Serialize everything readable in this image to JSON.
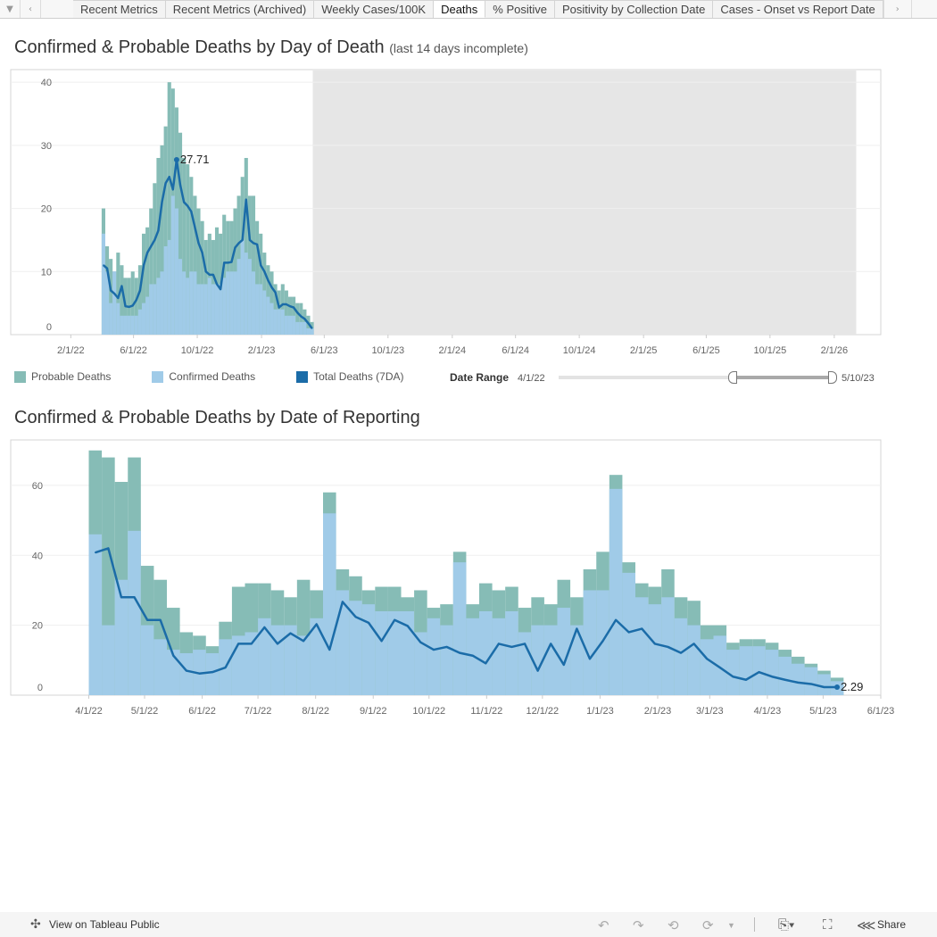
{
  "tabs": {
    "items": [
      "Recent Metrics",
      "Recent Metrics (Archived)",
      "Weekly Cases/100K",
      "Deaths",
      "% Positive",
      "Positivity by Collection Date",
      "Cases - Onset vs Report Date"
    ],
    "active": "Deaths",
    "menu_icon": "dropdown-triangle-icon",
    "prev_icon": "chevron-left-icon",
    "next_icon": "chevron-right-icon"
  },
  "colors": {
    "probable": "#86bcb6",
    "confirmed": "#a0cbe8",
    "total_7da": "#1b6ca8",
    "incomplete_band": "#e6e6e6"
  },
  "legend": {
    "probable": "Probable Deaths",
    "confirmed": "Confirmed Deaths",
    "total": "Total Deaths (7DA)"
  },
  "date_range": {
    "label": "Date Range",
    "start": "4/1/22",
    "end": "5/10/23"
  },
  "chart_data": [
    {
      "type": "bar",
      "title": "Confirmed & Probable Deaths by Day of Death",
      "subtitle": "(last 14 days incomplete)",
      "x_domain": [
        "2021-10-09",
        "2026-05-01"
      ],
      "incomplete_band": [
        "2023-05-10",
        "2026-03-15"
      ],
      "ylim": [
        0,
        42
      ],
      "y_ticks": [
        0,
        10,
        20,
        30,
        40
      ],
      "x_ticks": [
        [
          "2022-02-01",
          "2/1/22"
        ],
        [
          "2022-06-01",
          "6/1/22"
        ],
        [
          "2022-10-01",
          "10/1/22"
        ],
        [
          "2023-02-01",
          "2/1/23"
        ],
        [
          "2023-06-01",
          "6/1/23"
        ],
        [
          "2023-10-01",
          "10/1/23"
        ],
        [
          "2024-02-01",
          "2/1/24"
        ],
        [
          "2024-06-01",
          "6/1/24"
        ],
        [
          "2024-10-01",
          "10/1/24"
        ],
        [
          "2025-02-01",
          "2/1/25"
        ],
        [
          "2025-06-01",
          "6/1/25"
        ],
        [
          "2025-10-01",
          "10/1/25"
        ],
        [
          "2026-02-01",
          "2/1/26"
        ]
      ],
      "grid": true,
      "x": [
        "2022-04-01",
        "2022-04-08",
        "2022-04-15",
        "2022-04-22",
        "2022-04-29",
        "2022-05-06",
        "2022-05-13",
        "2022-05-20",
        "2022-05-27",
        "2022-06-03",
        "2022-06-10",
        "2022-06-17",
        "2022-06-24",
        "2022-07-01",
        "2022-07-08",
        "2022-07-15",
        "2022-07-22",
        "2022-07-29",
        "2022-08-05",
        "2022-08-12",
        "2022-08-19",
        "2022-08-26",
        "2022-09-02",
        "2022-09-09",
        "2022-09-16",
        "2022-09-23",
        "2022-09-30",
        "2022-10-07",
        "2022-10-14",
        "2022-10-21",
        "2022-10-28",
        "2022-11-04",
        "2022-11-11",
        "2022-11-18",
        "2022-11-25",
        "2022-12-02",
        "2022-12-09",
        "2022-12-16",
        "2022-12-23",
        "2022-12-30",
        "2023-01-06",
        "2023-01-13",
        "2023-01-20",
        "2023-01-27",
        "2023-02-03",
        "2023-02-10",
        "2023-02-17",
        "2023-02-24",
        "2023-03-03",
        "2023-03-10",
        "2023-03-17",
        "2023-03-24",
        "2023-03-31",
        "2023-04-07",
        "2023-04-14",
        "2023-04-21",
        "2023-04-28",
        "2023-05-05"
      ],
      "series": [
        {
          "name": "Probable Deaths",
          "values": [
            20,
            14,
            12,
            10,
            13,
            11,
            9,
            9,
            10,
            9,
            11,
            16,
            17,
            20,
            24,
            28,
            30,
            33,
            40,
            39,
            36,
            32,
            28,
            27,
            25,
            22,
            20,
            18,
            15,
            16,
            15,
            17,
            16,
            19,
            18,
            18,
            20,
            22,
            25,
            28,
            22,
            22,
            18,
            16,
            13,
            11,
            10,
            8,
            7,
            8,
            7,
            6,
            6,
            5,
            5,
            4,
            3,
            2
          ]
        },
        {
          "name": "Confirmed Deaths",
          "values": [
            16,
            10,
            5,
            10,
            5,
            3,
            3,
            3,
            3,
            3,
            4,
            5,
            6,
            8,
            8,
            9,
            10,
            14,
            15,
            22,
            20,
            12,
            10,
            9,
            10,
            10,
            8,
            8,
            8,
            9,
            8,
            8,
            8,
            9,
            10,
            10,
            10,
            12,
            15,
            13,
            12,
            10,
            8,
            8,
            7,
            6,
            5,
            4,
            4,
            4,
            3,
            3,
            3,
            2,
            2,
            2,
            1,
            1
          ]
        },
        {
          "name": "Total Deaths (7DA)",
          "values": [
            11,
            10.5,
            7,
            6.5,
            5.8,
            7.7,
            4.5,
            4.4,
            4.6,
            5.5,
            7,
            11,
            13,
            14,
            15,
            16.5,
            21,
            24,
            25,
            23,
            27.71,
            23.7,
            21,
            20.4,
            19.5,
            17,
            14.5,
            13,
            10,
            9.5,
            9.5,
            8,
            7.2,
            11.4,
            11.4,
            11.5,
            13.8,
            14.5,
            15,
            21.4,
            15,
            14.5,
            14.3,
            11,
            10,
            8.6,
            7.5,
            6.7,
            4.3,
            4.8,
            4.8,
            4.5,
            4.3,
            3.5,
            2.9,
            2.5,
            1.8,
            1
          ]
        }
      ],
      "annotation": {
        "label": "27.71",
        "index": 20
      }
    },
    {
      "type": "bar",
      "title": "Confirmed & Probable Deaths by Date of Reporting",
      "x_domain": [
        "2022-02-18",
        "2023-06-01"
      ],
      "ylim": [
        0,
        73
      ],
      "y_ticks": [
        0,
        20,
        40,
        60
      ],
      "x_ticks": [
        [
          "2022-04-01",
          "4/1/22"
        ],
        [
          "2022-05-01",
          "5/1/22"
        ],
        [
          "2022-06-01",
          "6/1/22"
        ],
        [
          "2022-07-01",
          "7/1/22"
        ],
        [
          "2022-08-01",
          "8/1/22"
        ],
        [
          "2022-09-01",
          "9/1/22"
        ],
        [
          "2022-10-01",
          "10/1/22"
        ],
        [
          "2022-11-01",
          "11/1/22"
        ],
        [
          "2022-12-01",
          "12/1/22"
        ],
        [
          "2023-01-01",
          "1/1/23"
        ],
        [
          "2023-02-01",
          "2/1/23"
        ],
        [
          "2023-03-01",
          "3/1/23"
        ],
        [
          "2023-04-01",
          "4/1/23"
        ],
        [
          "2023-05-01",
          "5/1/23"
        ],
        [
          "2023-06-01",
          "6/1/23"
        ]
      ],
      "grid": true,
      "x": [
        "2022-04-01",
        "2022-04-08",
        "2022-04-15",
        "2022-04-22",
        "2022-04-29",
        "2022-05-06",
        "2022-05-13",
        "2022-05-20",
        "2022-05-27",
        "2022-06-03",
        "2022-06-10",
        "2022-06-17",
        "2022-06-24",
        "2022-07-01",
        "2022-07-08",
        "2022-07-15",
        "2022-07-22",
        "2022-07-29",
        "2022-08-05",
        "2022-08-12",
        "2022-08-19",
        "2022-08-26",
        "2022-09-02",
        "2022-09-09",
        "2022-09-16",
        "2022-09-23",
        "2022-09-30",
        "2022-10-07",
        "2022-10-14",
        "2022-10-21",
        "2022-10-28",
        "2022-11-04",
        "2022-11-11",
        "2022-11-18",
        "2022-11-25",
        "2022-12-02",
        "2022-12-09",
        "2022-12-16",
        "2022-12-23",
        "2022-12-30",
        "2023-01-06",
        "2023-01-13",
        "2023-01-20",
        "2023-01-27",
        "2023-02-03",
        "2023-02-10",
        "2023-02-17",
        "2023-02-24",
        "2023-03-03",
        "2023-03-10",
        "2023-03-17",
        "2023-03-24",
        "2023-03-31",
        "2023-04-07",
        "2023-04-14",
        "2023-04-21",
        "2023-04-28",
        "2023-05-05"
      ],
      "series": [
        {
          "name": "Probable Deaths",
          "values": [
            70,
            68,
            61,
            68,
            37,
            33,
            25,
            18,
            17,
            14,
            21,
            31,
            32,
            32,
            30,
            28,
            33,
            30,
            58,
            36,
            34,
            30,
            31,
            31,
            28,
            30,
            25,
            26,
            41,
            26,
            32,
            30,
            31,
            25,
            28,
            26,
            33,
            28,
            36,
            41,
            63,
            38,
            32,
            31,
            36,
            28,
            27,
            20,
            20,
            15,
            16,
            16,
            15,
            13,
            11,
            9,
            7,
            5
          ]
        },
        {
          "name": "Confirmed Deaths",
          "values": [
            46,
            20,
            33,
            47,
            20,
            16,
            13,
            12,
            13,
            12,
            16,
            17,
            18,
            22,
            20,
            20,
            17,
            22,
            52,
            30,
            27,
            26,
            24,
            24,
            24,
            18,
            22,
            20,
            38,
            22,
            24,
            22,
            24,
            18,
            20,
            20,
            25,
            20,
            30,
            30,
            59,
            35,
            28,
            26,
            28,
            22,
            20,
            16,
            17,
            13,
            14,
            14,
            13,
            11,
            9,
            8,
            6,
            4
          ]
        },
        {
          "name": "Total Deaths (7DA)",
          "values": [
            40.8,
            42,
            28,
            28,
            21.5,
            21.5,
            11.3,
            7,
            6.2,
            6.6,
            7.9,
            14.7,
            14.7,
            19.4,
            14.7,
            17.7,
            15.5,
            20.3,
            13,
            26.7,
            22.4,
            20.7,
            15.5,
            21.5,
            19.8,
            15.1,
            13,
            13.8,
            12.1,
            11.3,
            9.1,
            14.7,
            13.8,
            14.7,
            7,
            14.7,
            8.7,
            19,
            10.4,
            15.5,
            21.5,
            18,
            19,
            14.7,
            13.8,
            12.1,
            14.7,
            10.4,
            7.9,
            5.3,
            4.4,
            6.6,
            5.3,
            4.4,
            3.6,
            3.2,
            2.3,
            2.29
          ]
        }
      ],
      "annotation": {
        "label": "2.29",
        "index": 57
      }
    }
  ],
  "toolbar": {
    "view_on_public": "View on Tableau Public",
    "share": "Share",
    "icons": [
      "tableau-logo-icon",
      "undo-icon",
      "redo-icon",
      "revert-icon",
      "refresh-icon",
      "download-icon",
      "fullscreen-icon",
      "share-icon"
    ]
  }
}
